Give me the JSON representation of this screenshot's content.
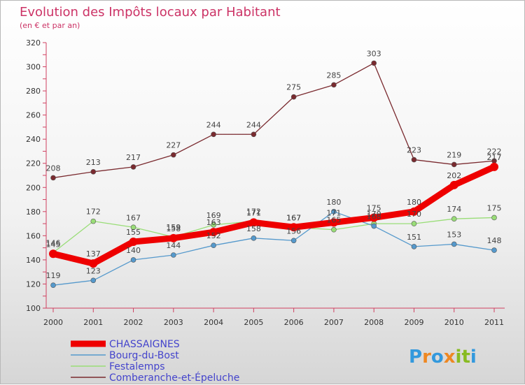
{
  "chart_data": {
    "type": "line",
    "title": "Evolution des Impôts locaux par Habitant",
    "subtitle": "(en € et par an)",
    "xlabel": "",
    "ylabel": "",
    "ylim": [
      100,
      320
    ],
    "yticks": [
      100,
      120,
      140,
      160,
      180,
      200,
      220,
      240,
      260,
      280,
      300,
      320
    ],
    "grid": false,
    "legend_position": "bottom-left",
    "categories": [
      "2000",
      "2001",
      "2002",
      "2003",
      "2004",
      "2005",
      "2006",
      "2007",
      "2008",
      "2009",
      "2010",
      "2011"
    ],
    "series": [
      {
        "name": "Comberanche-et-Épeluche",
        "color": "#7a2a2f",
        "values": [
          208,
          213,
          217,
          227,
          244,
          244,
          275,
          285,
          303,
          223,
          219,
          222
        ]
      },
      {
        "name": "Festalemps",
        "color": "#99dd77",
        "values": [
          146,
          172,
          167,
          159,
          169,
          172,
          167,
          165,
          170,
          170,
          174,
          175
        ]
      },
      {
        "name": "Bourg-du-Bost",
        "color": "#5599cc",
        "values": [
          119,
          123,
          140,
          144,
          152,
          158,
          156,
          180,
          168,
          151,
          153,
          148
        ]
      },
      {
        "name": "CHASSAIGNES",
        "color": "#ee0000",
        "values": [
          145,
          137,
          155,
          158,
          163,
          171,
          167,
          171,
          175,
          180,
          202,
          217
        ]
      }
    ]
  },
  "logo_text": "Proxiti"
}
